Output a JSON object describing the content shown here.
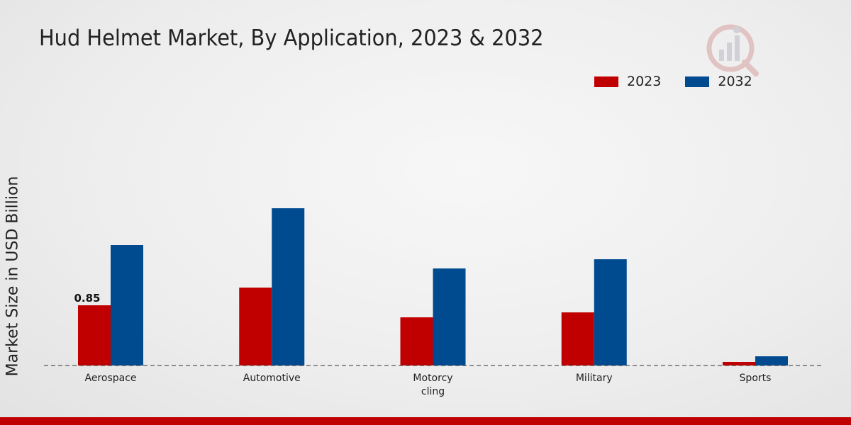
{
  "chart_data": {
    "type": "bar",
    "title": "Hud Helmet Market, By Application, 2023 & 2032",
    "xlabel": "",
    "ylabel": "Market Size in USD Billion",
    "categories": [
      "Aerospace",
      "Automotive",
      "Motorcycling",
      "Military",
      "Sports"
    ],
    "category_display": [
      [
        "Aerospace"
      ],
      [
        "Automotive"
      ],
      [
        "Motorcy",
        "cling"
      ],
      [
        "Military"
      ],
      [
        "Sports"
      ]
    ],
    "series": [
      {
        "name": "2023",
        "color": "#c00000",
        "values": [
          0.85,
          1.1,
          0.68,
          0.75,
          0.05
        ]
      },
      {
        "name": "2032",
        "color": "#004a8f",
        "values": [
          1.7,
          2.22,
          1.37,
          1.5,
          0.13
        ]
      }
    ],
    "data_labels": [
      {
        "series": 0,
        "index": 0,
        "text": "0.85"
      }
    ],
    "ylim": [
      0,
      3.2
    ],
    "grid": false,
    "legend": "top-right"
  }
}
